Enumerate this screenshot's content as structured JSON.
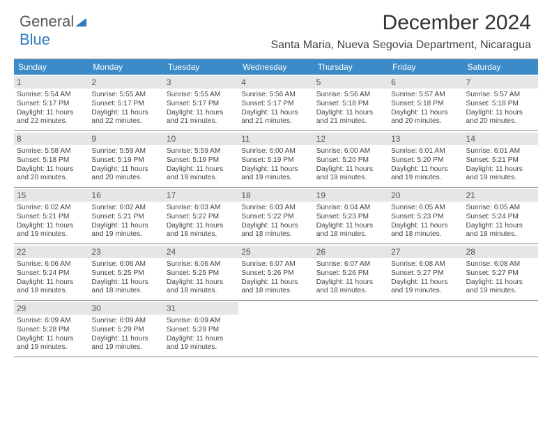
{
  "logo": {
    "text1": "General",
    "text2": "Blue"
  },
  "title": "December 2024",
  "subtitle": "Santa Maria, Nueva Segovia Department, Nicaragua",
  "colors": {
    "header_bg": "#3b8bc9",
    "header_text": "#ffffff",
    "date_bg": "#e6e6e6",
    "border": "#888888",
    "text": "#444444",
    "page_bg": "#ffffff"
  },
  "day_headers": [
    "Sunday",
    "Monday",
    "Tuesday",
    "Wednesday",
    "Thursday",
    "Friday",
    "Saturday"
  ],
  "weeks": [
    [
      {
        "n": "1",
        "sr": "Sunrise: 5:54 AM",
        "ss": "Sunset: 5:17 PM",
        "d1": "Daylight: 11 hours",
        "d2": "and 22 minutes."
      },
      {
        "n": "2",
        "sr": "Sunrise: 5:55 AM",
        "ss": "Sunset: 5:17 PM",
        "d1": "Daylight: 11 hours",
        "d2": "and 22 minutes."
      },
      {
        "n": "3",
        "sr": "Sunrise: 5:55 AM",
        "ss": "Sunset: 5:17 PM",
        "d1": "Daylight: 11 hours",
        "d2": "and 21 minutes."
      },
      {
        "n": "4",
        "sr": "Sunrise: 5:56 AM",
        "ss": "Sunset: 5:17 PM",
        "d1": "Daylight: 11 hours",
        "d2": "and 21 minutes."
      },
      {
        "n": "5",
        "sr": "Sunrise: 5:56 AM",
        "ss": "Sunset: 5:18 PM",
        "d1": "Daylight: 11 hours",
        "d2": "and 21 minutes."
      },
      {
        "n": "6",
        "sr": "Sunrise: 5:57 AM",
        "ss": "Sunset: 5:18 PM",
        "d1": "Daylight: 11 hours",
        "d2": "and 20 minutes."
      },
      {
        "n": "7",
        "sr": "Sunrise: 5:57 AM",
        "ss": "Sunset: 5:18 PM",
        "d1": "Daylight: 11 hours",
        "d2": "and 20 minutes."
      }
    ],
    [
      {
        "n": "8",
        "sr": "Sunrise: 5:58 AM",
        "ss": "Sunset: 5:18 PM",
        "d1": "Daylight: 11 hours",
        "d2": "and 20 minutes."
      },
      {
        "n": "9",
        "sr": "Sunrise: 5:59 AM",
        "ss": "Sunset: 5:19 PM",
        "d1": "Daylight: 11 hours",
        "d2": "and 20 minutes."
      },
      {
        "n": "10",
        "sr": "Sunrise: 5:59 AM",
        "ss": "Sunset: 5:19 PM",
        "d1": "Daylight: 11 hours",
        "d2": "and 19 minutes."
      },
      {
        "n": "11",
        "sr": "Sunrise: 6:00 AM",
        "ss": "Sunset: 5:19 PM",
        "d1": "Daylight: 11 hours",
        "d2": "and 19 minutes."
      },
      {
        "n": "12",
        "sr": "Sunrise: 6:00 AM",
        "ss": "Sunset: 5:20 PM",
        "d1": "Daylight: 11 hours",
        "d2": "and 19 minutes."
      },
      {
        "n": "13",
        "sr": "Sunrise: 6:01 AM",
        "ss": "Sunset: 5:20 PM",
        "d1": "Daylight: 11 hours",
        "d2": "and 19 minutes."
      },
      {
        "n": "14",
        "sr": "Sunrise: 6:01 AM",
        "ss": "Sunset: 5:21 PM",
        "d1": "Daylight: 11 hours",
        "d2": "and 19 minutes."
      }
    ],
    [
      {
        "n": "15",
        "sr": "Sunrise: 6:02 AM",
        "ss": "Sunset: 5:21 PM",
        "d1": "Daylight: 11 hours",
        "d2": "and 19 minutes."
      },
      {
        "n": "16",
        "sr": "Sunrise: 6:02 AM",
        "ss": "Sunset: 5:21 PM",
        "d1": "Daylight: 11 hours",
        "d2": "and 19 minutes."
      },
      {
        "n": "17",
        "sr": "Sunrise: 6:03 AM",
        "ss": "Sunset: 5:22 PM",
        "d1": "Daylight: 11 hours",
        "d2": "and 18 minutes."
      },
      {
        "n": "18",
        "sr": "Sunrise: 6:03 AM",
        "ss": "Sunset: 5:22 PM",
        "d1": "Daylight: 11 hours",
        "d2": "and 18 minutes."
      },
      {
        "n": "19",
        "sr": "Sunrise: 6:04 AM",
        "ss": "Sunset: 5:23 PM",
        "d1": "Daylight: 11 hours",
        "d2": "and 18 minutes."
      },
      {
        "n": "20",
        "sr": "Sunrise: 6:05 AM",
        "ss": "Sunset: 5:23 PM",
        "d1": "Daylight: 11 hours",
        "d2": "and 18 minutes."
      },
      {
        "n": "21",
        "sr": "Sunrise: 6:05 AM",
        "ss": "Sunset: 5:24 PM",
        "d1": "Daylight: 11 hours",
        "d2": "and 18 minutes."
      }
    ],
    [
      {
        "n": "22",
        "sr": "Sunrise: 6:06 AM",
        "ss": "Sunset: 5:24 PM",
        "d1": "Daylight: 11 hours",
        "d2": "and 18 minutes."
      },
      {
        "n": "23",
        "sr": "Sunrise: 6:06 AM",
        "ss": "Sunset: 5:25 PM",
        "d1": "Daylight: 11 hours",
        "d2": "and 18 minutes."
      },
      {
        "n": "24",
        "sr": "Sunrise: 6:06 AM",
        "ss": "Sunset: 5:25 PM",
        "d1": "Daylight: 11 hours",
        "d2": "and 18 minutes."
      },
      {
        "n": "25",
        "sr": "Sunrise: 6:07 AM",
        "ss": "Sunset: 5:26 PM",
        "d1": "Daylight: 11 hours",
        "d2": "and 18 minutes."
      },
      {
        "n": "26",
        "sr": "Sunrise: 6:07 AM",
        "ss": "Sunset: 5:26 PM",
        "d1": "Daylight: 11 hours",
        "d2": "and 18 minutes."
      },
      {
        "n": "27",
        "sr": "Sunrise: 6:08 AM",
        "ss": "Sunset: 5:27 PM",
        "d1": "Daylight: 11 hours",
        "d2": "and 19 minutes."
      },
      {
        "n": "28",
        "sr": "Sunrise: 6:08 AM",
        "ss": "Sunset: 5:27 PM",
        "d1": "Daylight: 11 hours",
        "d2": "and 19 minutes."
      }
    ],
    [
      {
        "n": "29",
        "sr": "Sunrise: 6:09 AM",
        "ss": "Sunset: 5:28 PM",
        "d1": "Daylight: 11 hours",
        "d2": "and 19 minutes."
      },
      {
        "n": "30",
        "sr": "Sunrise: 6:09 AM",
        "ss": "Sunset: 5:29 PM",
        "d1": "Daylight: 11 hours",
        "d2": "and 19 minutes."
      },
      {
        "n": "31",
        "sr": "Sunrise: 6:09 AM",
        "ss": "Sunset: 5:29 PM",
        "d1": "Daylight: 11 hours",
        "d2": "and 19 minutes."
      },
      null,
      null,
      null,
      null
    ]
  ]
}
